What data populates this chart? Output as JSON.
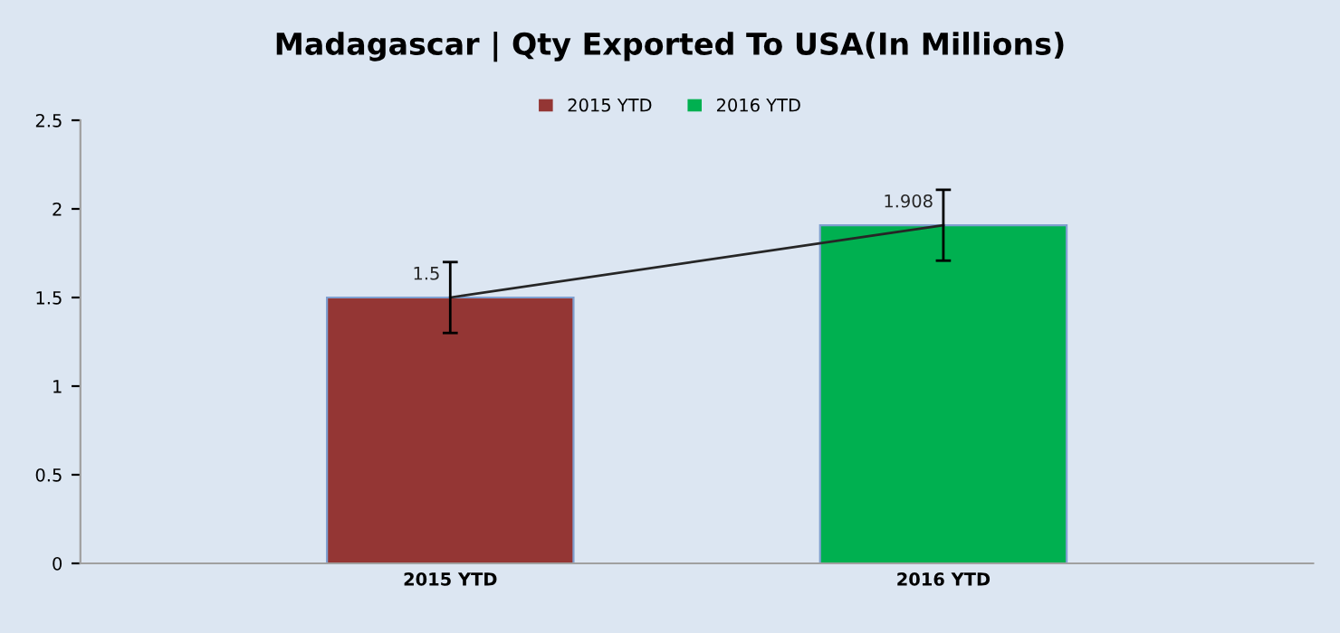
{
  "chart_data": {
    "type": "bar",
    "title": "Madagascar | Qty Exported To USA(In Millions)",
    "categories": [
      "2015 YTD",
      "2016 YTD"
    ],
    "stacked": true,
    "series": [
      {
        "name": "2015 YTD",
        "color": "#943634",
        "values": [
          1.5,
          null
        ],
        "errors": [
          0.2,
          null
        ],
        "value_labels": [
          "1.5",
          null
        ]
      },
      {
        "name": "2016 YTD",
        "color": "#00b050",
        "values": [
          null,
          1.908
        ],
        "errors": [
          null,
          0.2
        ],
        "value_labels": [
          null,
          "1.908"
        ]
      },
      {
        "type": "line",
        "color": "#262626",
        "values": [
          1.5,
          1.908
        ]
      }
    ],
    "ylim": [
      0,
      2.5
    ],
    "yticks": [
      0,
      0.5,
      1,
      1.5,
      2,
      2.5
    ],
    "grid": false,
    "legend": "top",
    "marker": "none"
  }
}
